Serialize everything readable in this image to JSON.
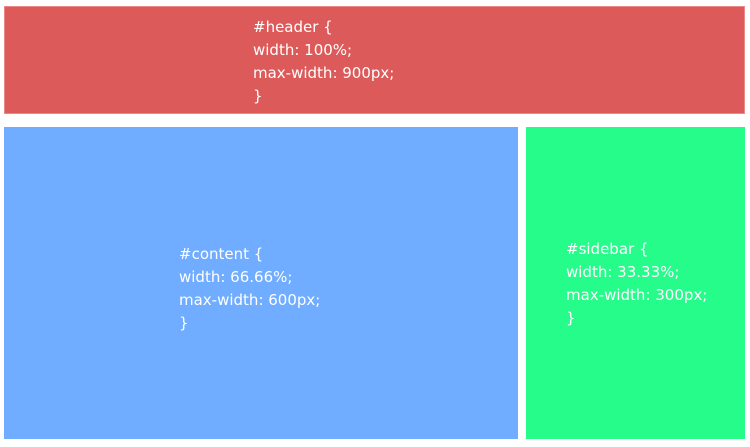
{
  "colors": {
    "header": "#dd5a5a",
    "content": "#70acff",
    "sidebar": "#25fc8a",
    "text": "#ffffff"
  },
  "header": {
    "lines": [
      "#header {",
      "width: 100%;",
      "max-width: 900px;",
      "}"
    ]
  },
  "content": {
    "lines": [
      "#content {",
      "width: 66.66%;",
      "max-width: 600px;",
      "}"
    ]
  },
  "sidebar": {
    "lines": [
      "#sidebar {",
      "width: 33.33%;",
      "max-width: 300px;",
      "}"
    ]
  }
}
